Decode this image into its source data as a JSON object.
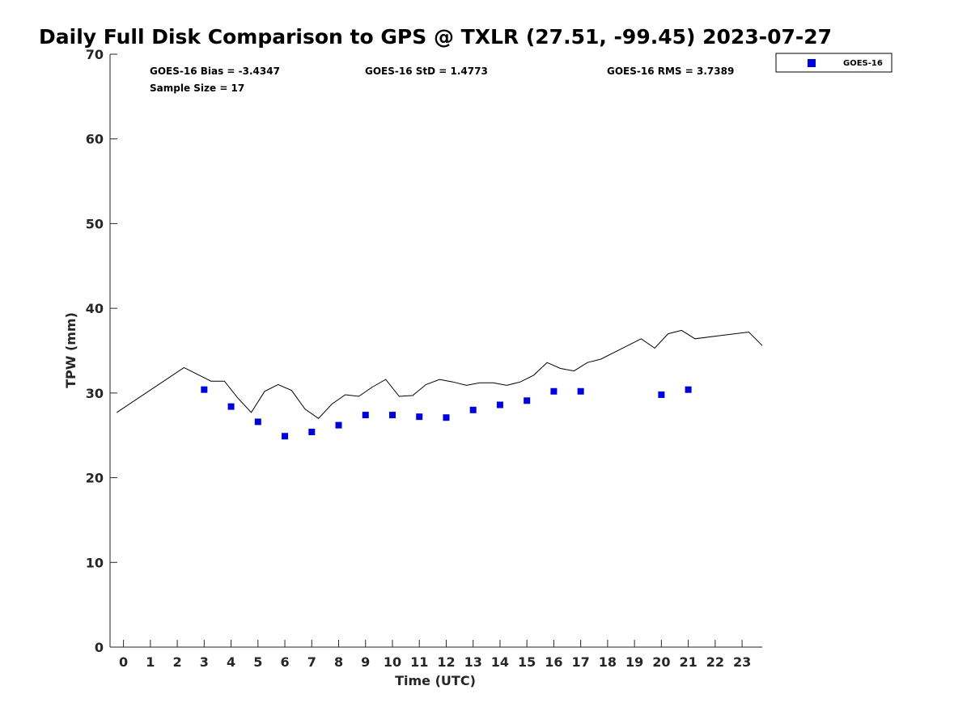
{
  "chart_data": {
    "type": "scatter",
    "title": "Daily Full Disk Comparison to GPS @ TXLR (27.51, -99.45) 2023-07-27",
    "xlabel": "Time (UTC)",
    "ylabel": "TPW (mm)",
    "xlim": [
      -0.5,
      23.75
    ],
    "ylim": [
      0,
      70
    ],
    "x_ticks": [
      0,
      1,
      2,
      3,
      4,
      5,
      6,
      7,
      8,
      9,
      10,
      11,
      12,
      13,
      14,
      15,
      16,
      17,
      18,
      19,
      20,
      21,
      22,
      23
    ],
    "x_tick_labels": [
      "0",
      "1",
      "2",
      "3",
      "4",
      "5",
      "6",
      "7",
      "8",
      "9",
      "10",
      "11",
      "12",
      "13",
      "14",
      "15",
      "16",
      "17",
      "18",
      "19",
      "20",
      "21",
      "22",
      "23"
    ],
    "y_ticks": [
      0,
      10,
      20,
      30,
      40,
      50,
      60,
      70
    ],
    "y_tick_labels": [
      "0",
      "10",
      "20",
      "30",
      "40",
      "50",
      "60",
      "70"
    ],
    "grid": false,
    "legend_position": "top-right",
    "stats": {
      "bias": "GOES-16 Bias = -3.4347",
      "std": "GOES-16 StD = 1.4773",
      "rms": "GOES-16 RMS = 3.7389",
      "sample": "Sample Size = 17"
    },
    "series": [
      {
        "name": "GOES-16",
        "kind": "scatter",
        "marker": "square",
        "color": "#0000dd",
        "x": [
          3,
          4,
          5,
          6,
          7,
          8,
          9,
          10,
          11,
          12,
          13,
          14,
          15,
          16,
          17,
          20,
          21
        ],
        "y": [
          30.4,
          28.4,
          26.6,
          24.9,
          25.4,
          26.2,
          27.4,
          27.4,
          27.2,
          27.1,
          28.0,
          28.6,
          29.1,
          30.2,
          30.2,
          29.8,
          30.4
        ]
      },
      {
        "kind": "line",
        "color": "#000000",
        "x": [
          -0.25,
          2.25,
          3.25,
          3.75,
          4.25,
          4.75,
          5.25,
          5.75,
          6.25,
          6.75,
          7.25,
          7.75,
          8.25,
          8.75,
          9.25,
          9.75,
          10.25,
          10.75,
          11.25,
          11.75,
          12.25,
          12.75,
          13.25,
          13.75,
          14.25,
          14.75,
          15.25,
          15.75,
          16.25,
          16.75,
          17.25,
          17.75,
          18.25,
          18.75,
          19.25,
          19.75,
          20.25,
          20.75,
          21.25,
          23.25,
          23.75
        ],
        "y": [
          27.7,
          33.0,
          31.4,
          31.4,
          29.4,
          27.7,
          30.2,
          31.0,
          30.3,
          28.1,
          27.0,
          28.7,
          29.8,
          29.6,
          30.7,
          31.6,
          29.6,
          29.7,
          31.0,
          31.6,
          31.3,
          30.9,
          31.2,
          31.2,
          30.9,
          31.3,
          32.1,
          33.6,
          32.9,
          32.6,
          33.6,
          34.0,
          34.8,
          35.6,
          36.4,
          35.3,
          37.0,
          37.4,
          36.4,
          37.2,
          35.6
        ]
      }
    ]
  }
}
